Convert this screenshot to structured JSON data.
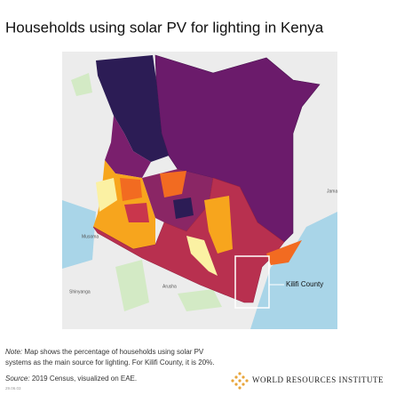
{
  "title": "Households using solar PV for lighting in Kenya",
  "map": {
    "labels": [
      "Musoma",
      "Shinyanga",
      "Arusha",
      "Jama"
    ],
    "annotation": "Kilifi County"
  },
  "note": {
    "label": "Note:",
    "text_line1": "Map shows the percentage of households using solar PV",
    "text_line2": "systems as the main source for lighting. For Kilifi County, it is 20%."
  },
  "source": {
    "label": "Source:",
    "text": "2019 Census, visualized on EAE."
  },
  "date": "29.06.03",
  "logo": "WORLD RESOURCES INSTITUTE"
}
